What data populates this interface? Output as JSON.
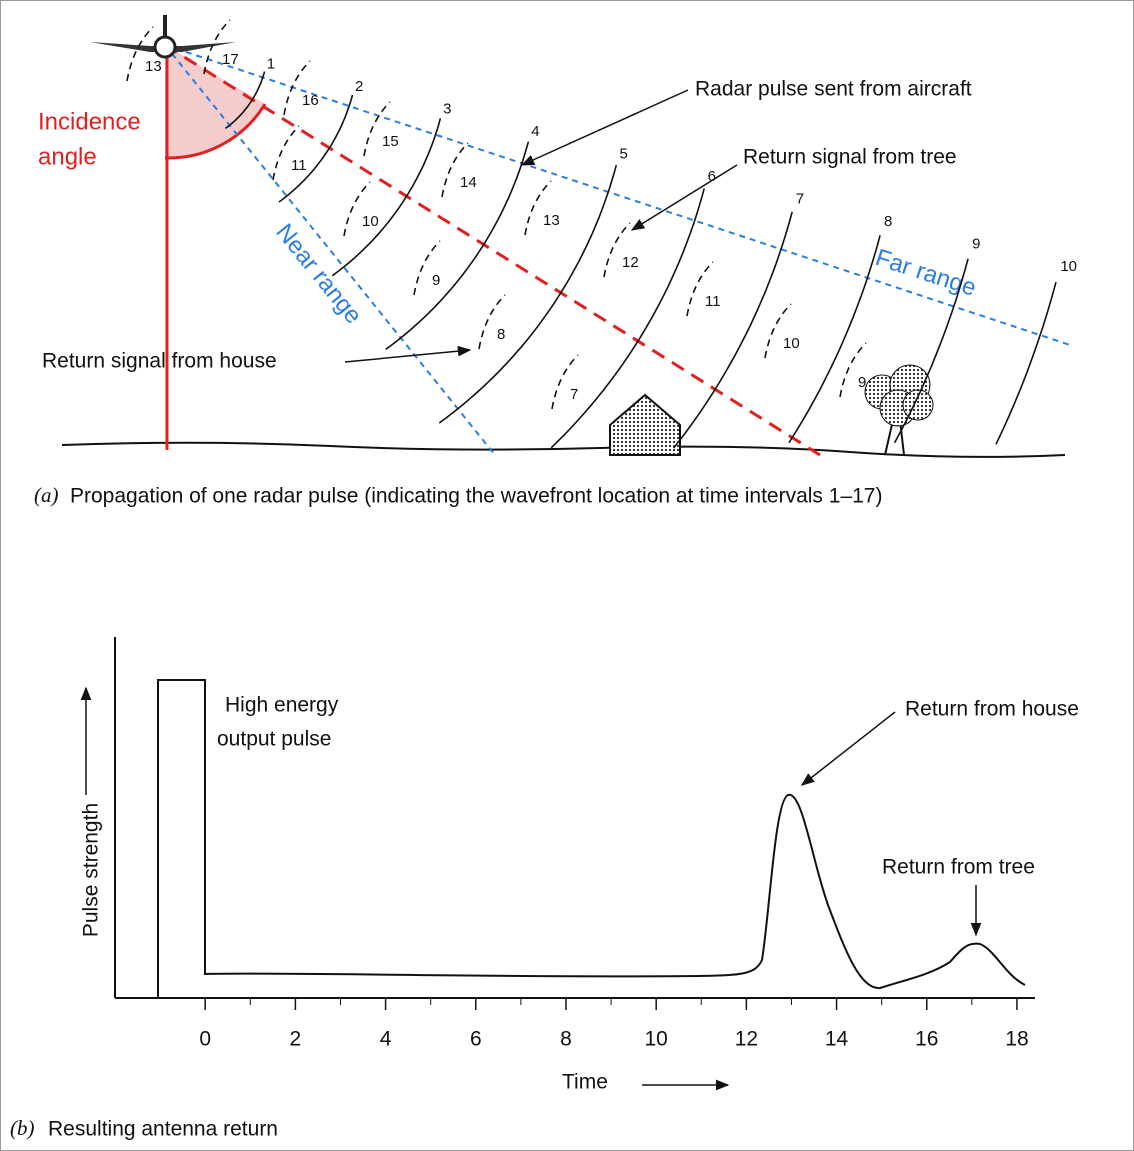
{
  "figure_a": {
    "caption_label": "(a)",
    "caption": "Propagation of one radar pulse (indicating the wavefront location at time intervals 1–17)",
    "incidence_angle": [
      "Incidence",
      "angle"
    ],
    "near_range": "Near range",
    "far_range": "Far range",
    "radar_pulse": "Radar pulse sent from aircraft",
    "return_tree": "Return signal from tree",
    "return_house": "Return signal from house",
    "outgoing_fronts": [
      1,
      2,
      3,
      4,
      5,
      6,
      7,
      8,
      9,
      10
    ],
    "house_returns": [
      7,
      8,
      9,
      10,
      11,
      13
    ],
    "tree_returns": [
      9,
      10,
      11,
      12,
      13,
      14,
      15,
      16,
      17
    ]
  },
  "figure_b": {
    "caption_label": "(b)",
    "caption": "Resulting antenna return",
    "x_label": "Time",
    "y_label": "Pulse strength",
    "output_pulse": [
      "High energy",
      "output pulse"
    ],
    "return_house": "Return from house",
    "return_tree": "Return from tree",
    "xlim": [
      -2,
      18.4
    ],
    "xticks": [
      0,
      2,
      4,
      6,
      8,
      10,
      12,
      14,
      16,
      18
    ]
  }
}
